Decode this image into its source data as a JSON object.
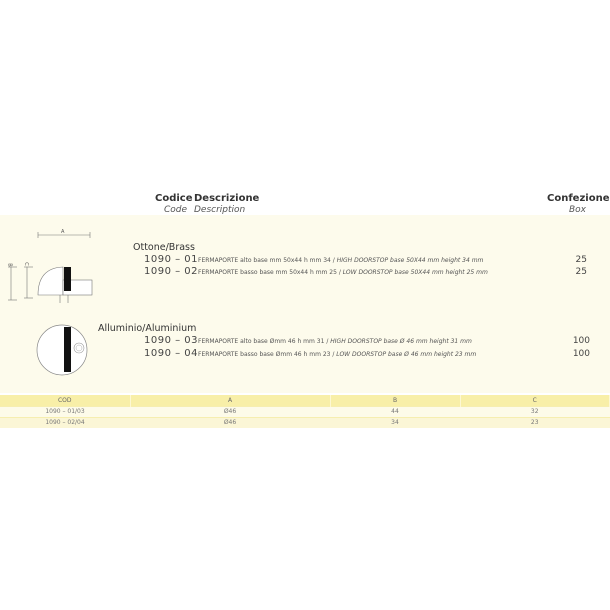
{
  "header": {
    "code_it": "Codice",
    "desc_it": "Descrizione",
    "code_en": "Code",
    "desc_en": "Description",
    "box_it": "Confezione",
    "box_en": "Box"
  },
  "groups": [
    {
      "title": "Ottone/Brass",
      "items": [
        {
          "code": "1090 – 01",
          "desc_it": "FERMAPORTE alto base mm 50x44 h mm 34 / ",
          "desc_en": "HIGH DOORSTOP base 50X44 mm height 34 mm",
          "qty": "25"
        },
        {
          "code": "1090 – 02",
          "desc_it": "FERMAPORTE basso base mm 50x44 h mm 25 / ",
          "desc_en": "LOW DOORSTOP base 50X44 mm height 25 mm",
          "qty": "25"
        }
      ]
    },
    {
      "title": "Alluminio/Aluminium",
      "items": [
        {
          "code": "1090 – 03",
          "desc_it": "FERMAPORTE alto base Ømm 46 h mm 31  / ",
          "desc_en": "HIGH DOORSTOP base Ø 46 mm height 31 mm",
          "qty": "100"
        },
        {
          "code": "1090 – 04",
          "desc_it": "FERMAPORTE basso base Ømm 46 h mm 23 / ",
          "desc_en": "LOW DOORSTOP base Ø 46 mm height 23 mm",
          "qty": "100"
        }
      ]
    }
  ],
  "drawing_labels": {
    "a": "A",
    "b": "B",
    "c": "C"
  },
  "table": {
    "headers": [
      "COD",
      "A",
      "B",
      "C"
    ],
    "rows": [
      [
        "1090 – 01/03",
        "Ø46",
        "44",
        "32"
      ],
      [
        "1090 – 02/04",
        "Ø46",
        "34",
        "23"
      ]
    ]
  }
}
